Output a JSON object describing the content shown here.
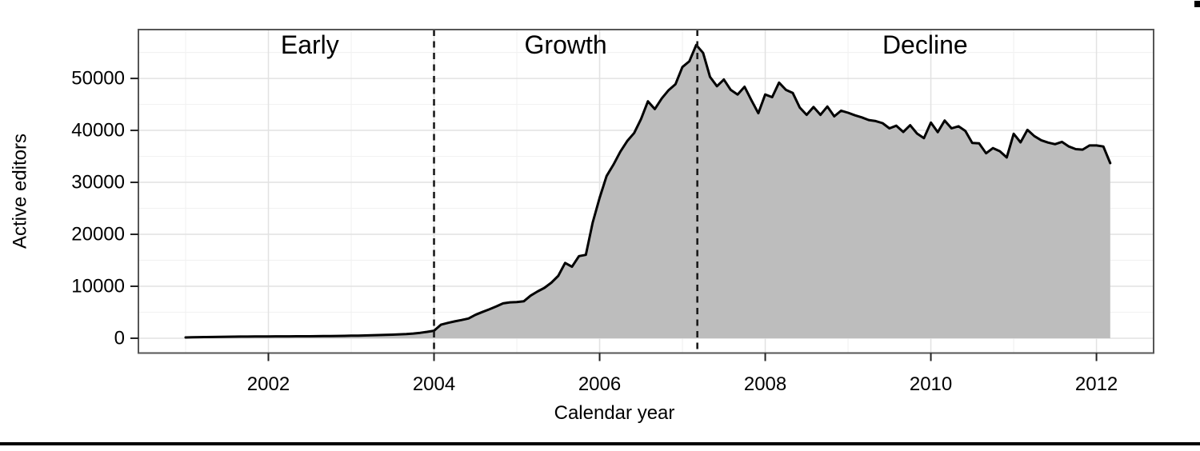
{
  "page": {
    "background": "#ffffff",
    "bottom_rule_color": "#000000",
    "corner_mark_color": "#000000"
  },
  "chart_data": {
    "type": "area",
    "title": "",
    "xlabel": "Calendar year",
    "ylabel": "Active editors",
    "xlim": [
      2000.43,
      2012.69
    ],
    "ylim": [
      -2850,
      59400
    ],
    "x_ticks": [
      2002,
      2004,
      2006,
      2008,
      2010,
      2012
    ],
    "x_minor_ticks": [
      2001,
      2003,
      2005,
      2007,
      2009,
      2011
    ],
    "y_ticks": [
      0,
      10000,
      20000,
      30000,
      40000,
      50000
    ],
    "y_minor_ticks": [
      5000,
      15000,
      25000,
      35000,
      45000,
      55000
    ],
    "grid": true,
    "legend": false,
    "series": [
      {
        "name": "Active editors",
        "start_year": 2001.0,
        "step_years": 0.083333,
        "values": [
          150,
          180,
          210,
          230,
          250,
          270,
          285,
          300,
          315,
          325,
          335,
          345,
          355,
          360,
          365,
          370,
          375,
          380,
          385,
          395,
          405,
          420,
          440,
          460,
          485,
          510,
          540,
          575,
          610,
          650,
          695,
          745,
          810,
          900,
          1040,
          1230,
          1450,
          2600,
          2950,
          3250,
          3500,
          3800,
          4500,
          5050,
          5550,
          6100,
          6700,
          6900,
          6950,
          7100,
          8200,
          9000,
          9700,
          10700,
          12000,
          14500,
          13750,
          15800,
          16050,
          22300,
          27000,
          31200,
          33400,
          35900,
          37950,
          39500,
          42200,
          45600,
          44100,
          46150,
          47750,
          48900,
          52200,
          53300,
          56450,
          54900,
          50300,
          48500,
          49800,
          47800,
          46900,
          48400,
          45800,
          43300,
          46900,
          46400,
          49200,
          47800,
          47200,
          44400,
          43000,
          44500,
          43000,
          44600,
          42700,
          43800,
          43400,
          42900,
          42500,
          42000,
          41800,
          41400,
          40400,
          40900,
          39700,
          41000,
          39400,
          38500,
          41500,
          39650,
          41900,
          40400,
          40800,
          39900,
          37600,
          37500,
          35600,
          36600,
          36000,
          34800,
          39350,
          37700,
          40100,
          38900,
          38100,
          37650,
          37350,
          37800,
          36900,
          36400,
          36300,
          37100,
          37100,
          36900,
          33700
        ]
      }
    ],
    "annotations": [
      {
        "label": "Early",
        "x": 2002.5,
        "y": 56500
      },
      {
        "label": "Growth",
        "x": 2005.59,
        "y": 56500
      },
      {
        "label": "Decline",
        "x": 2009.93,
        "y": 56500
      }
    ],
    "phase_boundaries": [
      2004.0,
      2007.18
    ],
    "colors": {
      "line": "#000000",
      "fill": "#bdbdbd",
      "grid_major": "#e2e2e2",
      "grid_minor": "#f2f2f2",
      "panel_border": "#565656",
      "tick": "#222222",
      "dashed_line": "#1a1a1a",
      "text": "#000000"
    }
  }
}
